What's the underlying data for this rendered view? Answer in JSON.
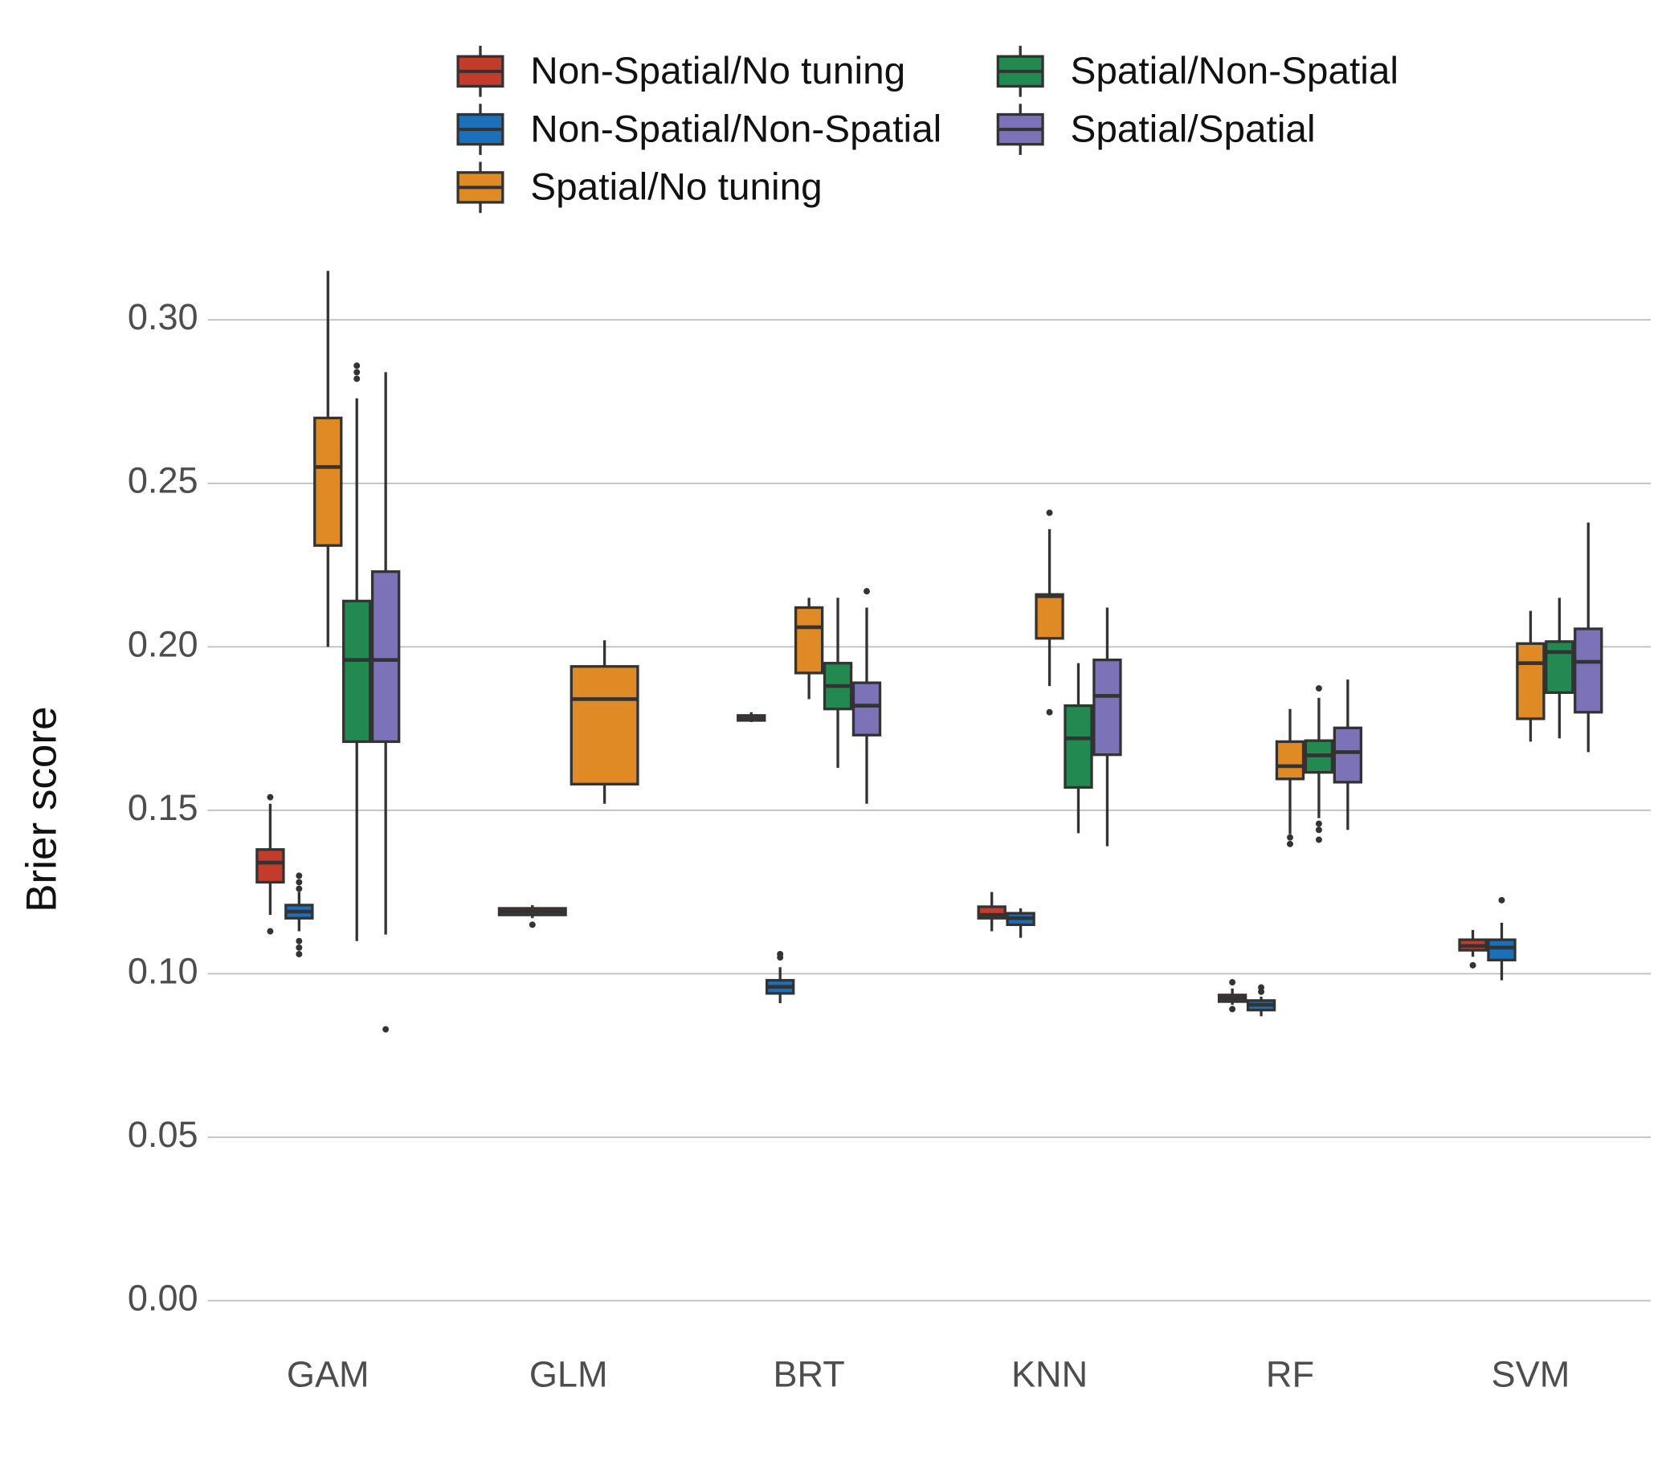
{
  "chart_data": {
    "type": "box",
    "y_label": "Brier score",
    "categories": [
      "GAM",
      "GLM",
      "BRT",
      "KNN",
      "RF",
      "SVM"
    ],
    "ylim": [
      -0.008,
      0.32
    ],
    "yticks": [
      {
        "value": 0,
        "label": "0.00"
      },
      0.05,
      {
        "value": 0.1,
        "label": "0.10"
      },
      0.15,
      {
        "value": 0.2,
        "label": "0.20"
      },
      0.25,
      {
        "value": 0.3,
        "label": "0.30"
      }
    ],
    "grid": true,
    "legend": "top",
    "series": [
      {
        "name": "Non-Spatial/No tuning",
        "color": "#c23b2b",
        "boxes": [
          {
            "min": 0.118,
            "q1": 0.128,
            "median": 0.134,
            "q3": 0.138,
            "max": 0.152,
            "outliers": [
              0.154,
              0.113
            ]
          },
          {
            "min": 0.117,
            "q1": 0.118,
            "median": 0.119,
            "q3": 0.12,
            "max": 0.121,
            "outliers": [
              0.115
            ]
          },
          {
            "min": 0.177,
            "q1": 0.1775,
            "median": 0.178,
            "q3": 0.179,
            "max": 0.18,
            "outliers": []
          },
          {
            "min": 0.113,
            "q1": 0.117,
            "median": 0.118,
            "q3": 0.1205,
            "max": 0.125,
            "outliers": []
          },
          {
            "min": 0.0905,
            "q1": 0.0915,
            "median": 0.0925,
            "q3": 0.0935,
            "max": 0.0955,
            "outliers": [
              0.0974,
              0.0892
            ]
          },
          {
            "min": 0.1052,
            "q1": 0.1072,
            "median": 0.1085,
            "q3": 0.1104,
            "max": 0.1134,
            "outliers": [
              0.1026
            ]
          }
        ]
      },
      {
        "name": "Non-Spatial/Non-Spatial",
        "color": "#1b70b9",
        "boxes": [
          {
            "min": 0.113,
            "q1": 0.117,
            "median": 0.119,
            "q3": 0.121,
            "max": 0.125,
            "outliers": [
              0.13,
              0.128,
              0.126,
              0.11,
              0.108,
              0.106
            ]
          },
          null,
          {
            "min": 0.091,
            "q1": 0.094,
            "median": 0.096,
            "q3": 0.098,
            "max": 0.102,
            "outliers": [
              0.106,
              0.105
            ]
          },
          {
            "min": 0.111,
            "q1": 0.115,
            "median": 0.117,
            "q3": 0.1185,
            "max": 0.12,
            "outliers": []
          },
          {
            "min": 0.087,
            "q1": 0.0889,
            "median": 0.0905,
            "q3": 0.0918,
            "max": 0.093,
            "outliers": [
              0.0958,
              0.0945
            ]
          },
          {
            "min": 0.098,
            "q1": 0.1042,
            "median": 0.108,
            "q3": 0.1104,
            "max": 0.1156,
            "outliers": [
              0.1225
            ]
          }
        ]
      },
      {
        "name": "Spatial/No tuning",
        "color": "#e08a25",
        "boxes": [
          {
            "min": 0.2,
            "q1": 0.231,
            "median": 0.255,
            "q3": 0.27,
            "max": 0.315,
            "outliers": []
          },
          {
            "min": 0.152,
            "q1": 0.158,
            "median": 0.184,
            "q3": 0.194,
            "max": 0.202,
            "outliers": []
          },
          {
            "min": 0.184,
            "q1": 0.192,
            "median": 0.206,
            "q3": 0.212,
            "max": 0.215,
            "outliers": []
          },
          {
            "min": 0.188,
            "q1": 0.2026,
            "median": 0.2155,
            "q3": 0.216,
            "max": 0.236,
            "outliers": [
              0.241,
              0.18
            ]
          },
          {
            "min": 0.1427,
            "q1": 0.1596,
            "median": 0.1635,
            "q3": 0.171,
            "max": 0.181,
            "outliers": [
              0.1417,
              0.1397
            ]
          },
          {
            "min": 0.171,
            "q1": 0.178,
            "median": 0.195,
            "q3": 0.201,
            "max": 0.211,
            "outliers": []
          }
        ]
      },
      {
        "name": "Spatial/Non-Spatial",
        "color": "#228a50",
        "boxes": [
          {
            "min": 0.11,
            "q1": 0.171,
            "median": 0.196,
            "q3": 0.214,
            "max": 0.276,
            "outliers": [
              0.286,
              0.284,
              0.282
            ]
          },
          null,
          {
            "min": 0.163,
            "q1": 0.181,
            "median": 0.188,
            "q3": 0.195,
            "max": 0.215,
            "outliers": []
          },
          {
            "min": 0.143,
            "q1": 0.157,
            "median": 0.172,
            "q3": 0.182,
            "max": 0.195,
            "outliers": []
          },
          {
            "min": 0.1476,
            "q1": 0.1616,
            "median": 0.1668,
            "q3": 0.1713,
            "max": 0.1844,
            "outliers": [
              0.1873,
              0.1459,
              0.144,
              0.141
            ]
          },
          {
            "min": 0.172,
            "q1": 0.186,
            "median": 0.1984,
            "q3": 0.2016,
            "max": 0.215,
            "outliers": []
          }
        ]
      },
      {
        "name": "Spatial/Spatial",
        "color": "#7b72b8",
        "boxes": [
          {
            "min": 0.112,
            "q1": 0.171,
            "median": 0.196,
            "q3": 0.223,
            "max": 0.284,
            "outliers": [
              0.083
            ]
          },
          null,
          {
            "min": 0.152,
            "q1": 0.173,
            "median": 0.182,
            "q3": 0.189,
            "max": 0.212,
            "outliers": [
              0.217
            ]
          },
          {
            "min": 0.139,
            "q1": 0.167,
            "median": 0.185,
            "q3": 0.196,
            "max": 0.212,
            "outliers": []
          },
          {
            "min": 0.144,
            "q1": 0.1586,
            "median": 0.1678,
            "q3": 0.1752,
            "max": 0.19,
            "outliers": []
          },
          {
            "min": 0.1678,
            "q1": 0.18,
            "median": 0.1954,
            "q3": 0.2055,
            "max": 0.238,
            "outliers": []
          }
        ]
      }
    ]
  }
}
